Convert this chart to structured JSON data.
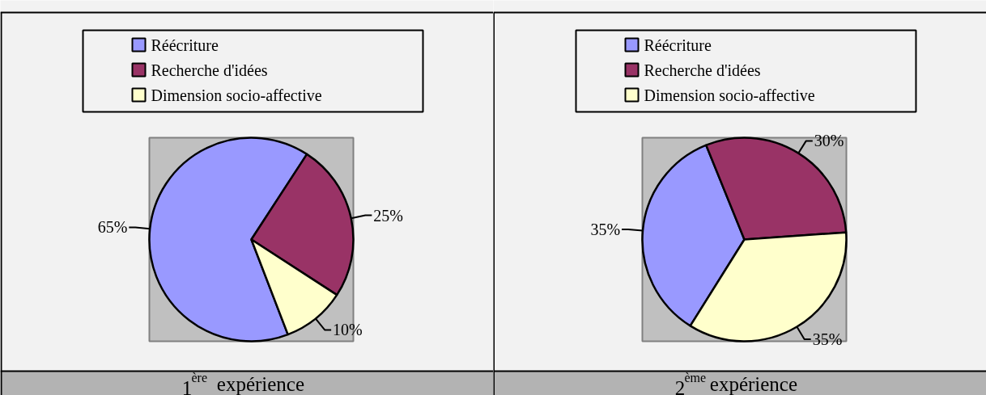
{
  "chart_data": [
    {
      "type": "pie",
      "title": "1$^{ère}$ expérience",
      "categories": [
        "Réécriture",
        "Recherche d'idées",
        "Dimension socio-affective"
      ],
      "values": [
        65,
        25,
        10
      ],
      "value_labels": [
        "65%",
        "25%",
        "10%"
      ],
      "colors": [
        "#9999ff",
        "#993366",
        "#ffffcc"
      ],
      "legend": "top"
    },
    {
      "type": "pie",
      "title": "2$^{ème}$ expérience",
      "categories": [
        "Réécriture",
        "Recherche d'idées",
        "Dimension socio-affective"
      ],
      "values": [
        35,
        30,
        35
      ],
      "value_labels": [
        "35%",
        "30%",
        "35%"
      ],
      "colors": [
        "#9999ff",
        "#993366",
        "#ffffcc"
      ],
      "legend": "top"
    }
  ]
}
